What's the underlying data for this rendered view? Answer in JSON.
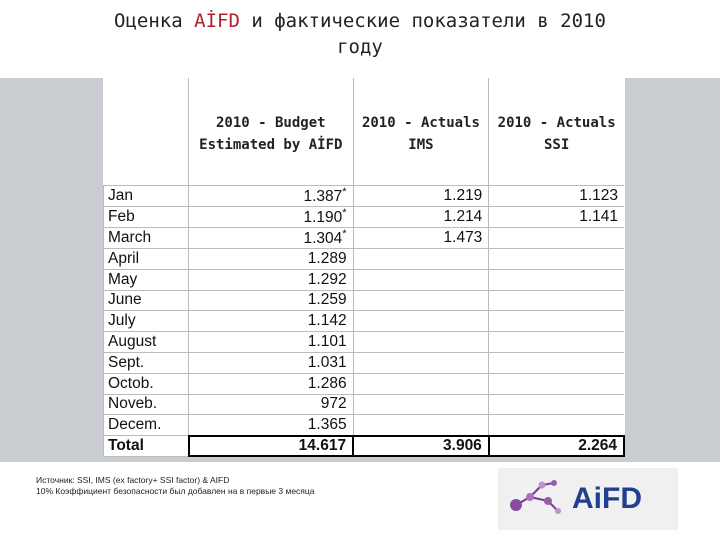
{
  "title": {
    "part1": "Оценка ",
    "brand": "AİFD",
    "part2": " и фактические показатели в 2010",
    "line2": "году"
  },
  "table": {
    "headers": [
      {
        "line1": "2010 - Budget",
        "line2": "Estimated by AİFD"
      },
      {
        "line1": "2010 - Actuals",
        "line2": "IMS"
      },
      {
        "line1": "2010 - Actuals",
        "line2": "SSI"
      }
    ],
    "rows": [
      {
        "month": "Jan",
        "budget": "1.387",
        "ast": "*",
        "ims": "1.219",
        "ssi": "1.123"
      },
      {
        "month": "Feb",
        "budget": "1.190",
        "ast": "*",
        "ims": "1.214",
        "ssi": "1.141"
      },
      {
        "month": "March",
        "budget": "1.304",
        "ast": "*",
        "ims": "1.473",
        "ssi": ""
      },
      {
        "month": "April",
        "budget": "1.289",
        "ast": "",
        "ims": "",
        "ssi": ""
      },
      {
        "month": "May",
        "budget": "1.292",
        "ast": "",
        "ims": "",
        "ssi": ""
      },
      {
        "month": "June",
        "budget": "1.259",
        "ast": "",
        "ims": "",
        "ssi": ""
      },
      {
        "month": "July",
        "budget": "1.142",
        "ast": "",
        "ims": "",
        "ssi": ""
      },
      {
        "month": "August",
        "budget": "1.101",
        "ast": "",
        "ims": "",
        "ssi": ""
      },
      {
        "month": "Sept.",
        "budget": "1.031",
        "ast": "",
        "ims": "",
        "ssi": ""
      },
      {
        "month": "Octob.",
        "budget": "1.286",
        "ast": "",
        "ims": "",
        "ssi": ""
      },
      {
        "month": "Noveb.",
        "budget": "972",
        "ast": "",
        "ims": "",
        "ssi": ""
      },
      {
        "month": "Decem.",
        "budget": "1.365",
        "ast": "",
        "ims": "",
        "ssi": ""
      }
    ],
    "total": {
      "month": "Total",
      "budget": "14.617",
      "ims": "3.906",
      "ssi": "2.264"
    }
  },
  "footer": {
    "source": "Источник: SSI, IMS (ex factory+ SSI factor) & AIFD",
    "note": "10% Коэффициент безопасности был добавлен на в первые 3 месяца"
  },
  "logo": {
    "text": "AiFD",
    "icon": "molecule-icon"
  },
  "colors": {
    "brand": "#b02030",
    "logo_blue": "#1f3f8f",
    "panel": "#c9cdd2"
  }
}
